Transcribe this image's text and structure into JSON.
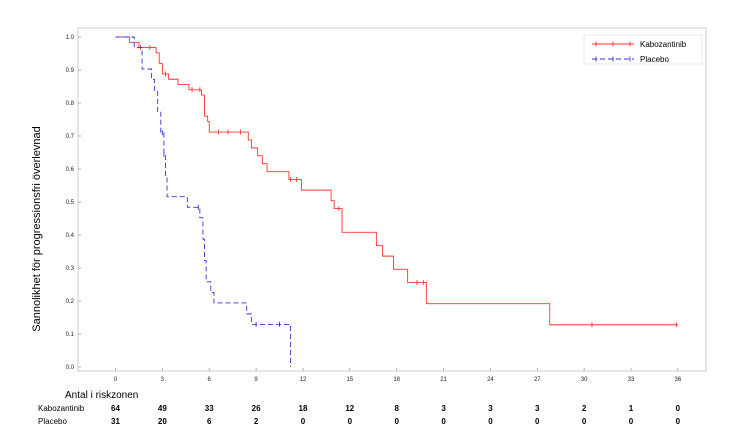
{
  "chart_data": {
    "type": "line",
    "subtype": "kaplan-meier",
    "ylabel": "Sannolikhet för progressionsfri överlevnad",
    "xlabel": "",
    "xlim": [
      -2.4,
      37.8
    ],
    "ylim": [
      0,
      1.0
    ],
    "x_ticks": [
      0,
      3,
      6,
      9,
      12,
      15,
      18,
      21,
      24,
      27,
      30,
      33,
      36
    ],
    "y_ticks": [
      0.0,
      0.1,
      0.2,
      0.3,
      0.4,
      0.5,
      0.6,
      0.7,
      0.8,
      0.9,
      1.0
    ],
    "y_tick_labels": [
      "0.0",
      "0.1",
      "0.2",
      "0.3",
      "0.4",
      "0.5",
      "0.6",
      "0.7",
      "0.8",
      "0.9",
      "1.0"
    ],
    "grid": false,
    "legend_position": "top-right",
    "series": [
      {
        "name": "Kabozantinib",
        "color": "#ff3333",
        "dash": "solid",
        "steps": [
          [
            0,
            1.0
          ],
          [
            0.9,
            0.984
          ],
          [
            1.5,
            0.968
          ],
          [
            2.6,
            0.952
          ],
          [
            2.8,
            0.92
          ],
          [
            3.0,
            0.888
          ],
          [
            3.4,
            0.872
          ],
          [
            4.0,
            0.856
          ],
          [
            4.7,
            0.84
          ],
          [
            5.5,
            0.824
          ],
          [
            5.7,
            0.76
          ],
          [
            5.9,
            0.744
          ],
          [
            6.0,
            0.712
          ],
          [
            8.5,
            0.688
          ],
          [
            8.7,
            0.664
          ],
          [
            9.1,
            0.64
          ],
          [
            9.4,
            0.616
          ],
          [
            9.7,
            0.592
          ],
          [
            11.1,
            0.568
          ],
          [
            11.9,
            0.536
          ],
          [
            13.8,
            0.504
          ],
          [
            14.0,
            0.48
          ],
          [
            14.5,
            0.408
          ],
          [
            16.7,
            0.368
          ],
          [
            17.1,
            0.336
          ],
          [
            17.8,
            0.296
          ],
          [
            18.7,
            0.256
          ],
          [
            19.9,
            0.192
          ],
          [
            27.8,
            0.128
          ],
          [
            36.0,
            0.128
          ]
        ],
        "censored": [
          [
            1.6,
            0.968
          ],
          [
            2.2,
            0.968
          ],
          [
            3.2,
            0.888
          ],
          [
            4.9,
            0.84
          ],
          [
            5.4,
            0.84
          ],
          [
            6.6,
            0.712
          ],
          [
            7.2,
            0.712
          ],
          [
            8.0,
            0.712
          ],
          [
            11.2,
            0.568
          ],
          [
            11.6,
            0.568
          ],
          [
            14.3,
            0.48
          ],
          [
            19.3,
            0.256
          ],
          [
            19.7,
            0.256
          ],
          [
            30.5,
            0.128
          ],
          [
            35.9,
            0.128
          ]
        ]
      },
      {
        "name": "Placebo",
        "color": "#3333dd",
        "dash": "dashed",
        "steps": [
          [
            0,
            1.0
          ],
          [
            1.2,
            0.968
          ],
          [
            1.7,
            0.903
          ],
          [
            2.3,
            0.871
          ],
          [
            2.5,
            0.839
          ],
          [
            2.7,
            0.774
          ],
          [
            2.9,
            0.71
          ],
          [
            3.1,
            0.645
          ],
          [
            3.2,
            0.581
          ],
          [
            3.3,
            0.516
          ],
          [
            4.6,
            0.484
          ],
          [
            5.4,
            0.452
          ],
          [
            5.6,
            0.387
          ],
          [
            5.7,
            0.323
          ],
          [
            5.8,
            0.258
          ],
          [
            6.1,
            0.226
          ],
          [
            6.3,
            0.194
          ],
          [
            8.4,
            0.161
          ],
          [
            8.7,
            0.129
          ],
          [
            11.2,
            0.0
          ]
        ],
        "censored": [
          [
            3.0,
            0.71
          ],
          [
            3.1,
            0.645
          ],
          [
            5.3,
            0.484
          ],
          [
            9.0,
            0.129
          ],
          [
            10.5,
            0.129
          ]
        ]
      }
    ],
    "risk_table": {
      "title": "Antal i riskzonen",
      "timepoints": [
        0,
        3,
        6,
        9,
        12,
        15,
        18,
        21,
        24,
        27,
        30,
        33,
        36
      ],
      "rows": [
        {
          "label": "Kabozantinib",
          "values": [
            "64",
            "49",
            "33",
            "26",
            "18",
            "12",
            "8",
            "3",
            "3",
            "3",
            "2",
            "1",
            "0"
          ]
        },
        {
          "label": "Placebo",
          "values": [
            "31",
            "20",
            "6",
            "2",
            "0",
            "0",
            "0",
            "0",
            "0",
            "0",
            "0",
            "0",
            "0"
          ]
        }
      ]
    }
  }
}
